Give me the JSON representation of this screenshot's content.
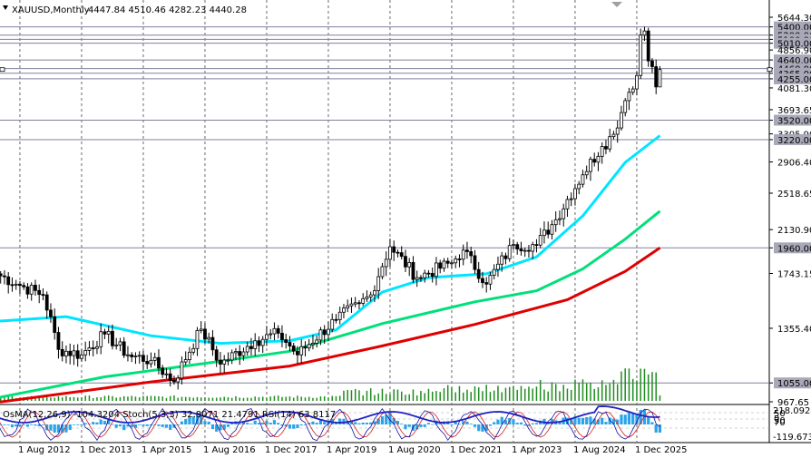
{
  "header": {
    "symbol": "XAUUSD,Monthly",
    "ohlc": "4447.84 4510.46 4282.23 4440.28",
    "indicators": "OsMA(12,26,9) -104.3204  Stoch(5,3,3) 32.8071 21.4791  RSI(14) 63.8117"
  },
  "price_axis": {
    "labels": [
      "5644.30",
      "5400.00",
      "5200.00",
      "5100.00",
      "5010.00",
      "4856.90",
      "4640.00",
      "4460.00",
      "4365.00",
      "4255.00",
      "4081.30",
      "3693.65",
      "3520.00",
      "3305.90",
      "3220.00",
      "2906.40",
      "2518.65",
      "2130.90",
      "1960.00",
      "1743.15",
      "1355.40",
      "1055.00",
      "967.65"
    ],
    "boxed": [
      "5400.00",
      "5200.00",
      "5100.00",
      "5010.00",
      "4640.00",
      "4460.00",
      "4365.00",
      "4255.00",
      "3520.00",
      "3220.00",
      "1960.00",
      "1055.00"
    ]
  },
  "sub_axis": {
    "labels": [
      "218.0924",
      "70",
      "50",
      "30",
      "0",
      "-119.6734"
    ]
  },
  "time_axis": {
    "labels": [
      "1 Aug 2012",
      "1 Dec 2013",
      "1 Apr 2015",
      "1 Aug 2016",
      "1 Dec 2017",
      "1 Apr 2019",
      "1 Aug 2020",
      "1 Dec 2021",
      "1 Apr 2023",
      "1 Aug 2024",
      "1 Dec 2025"
    ]
  },
  "colors": {
    "candle": "#000000",
    "ema_fast": "#00e5ff",
    "ema_mid": "#00e07a",
    "ema_slow": "#e00000",
    "volume": "#1e8c1e",
    "osma": "#2aa3e8",
    "stoch_main": "#1010a0",
    "stoch_signal": "#d02020",
    "rsi": "#2020c0",
    "level_line": "#8080a0"
  },
  "chart_data": {
    "type": "candlestick",
    "symbol": "XAUUSD",
    "timeframe": "Monthly",
    "last_bar": {
      "open": 4447.84,
      "high": 4510.46,
      "low": 4282.23,
      "close": 4440.28
    },
    "horizontal_levels": [
      5400,
      5200,
      5100,
      5010,
      4640,
      4460,
      4365,
      4255,
      3520,
      3220,
      1960,
      1055
    ],
    "y_axis": {
      "scale": "log",
      "range": [
        967.65,
        5644.3
      ]
    },
    "close_path": [
      {
        "x": "2012-02",
        "close": 1740
      },
      {
        "x": "2012-08",
        "close": 1650
      },
      {
        "x": "2013-02",
        "close": 1580
      },
      {
        "x": "2013-06",
        "close": 1230
      },
      {
        "x": "2013-12",
        "close": 1200
      },
      {
        "x": "2014-06",
        "close": 1320
      },
      {
        "x": "2014-12",
        "close": 1200
      },
      {
        "x": "2015-06",
        "close": 1170
      },
      {
        "x": "2015-12",
        "close": 1060
      },
      {
        "x": "2016-07",
        "close": 1350
      },
      {
        "x": "2016-12",
        "close": 1150
      },
      {
        "x": "2017-09",
        "close": 1280
      },
      {
        "x": "2018-03",
        "close": 1325
      },
      {
        "x": "2018-08",
        "close": 1200
      },
      {
        "x": "2019-06",
        "close": 1410
      },
      {
        "x": "2019-12",
        "close": 1520
      },
      {
        "x": "2020-03",
        "close": 1580
      },
      {
        "x": "2020-08",
        "close": 1970
      },
      {
        "x": "2021-03",
        "close": 1710
      },
      {
        "x": "2021-12",
        "close": 1830
      },
      {
        "x": "2022-03",
        "close": 1940
      },
      {
        "x": "2022-09",
        "close": 1660
      },
      {
        "x": "2023-04",
        "close": 1990
      },
      {
        "x": "2023-10",
        "close": 1985
      },
      {
        "x": "2024-03",
        "close": 2230
      },
      {
        "x": "2024-10",
        "close": 2740
      },
      {
        "x": "2025-03",
        "close": 3120
      },
      {
        "x": "2025-06",
        "close": 3300
      },
      {
        "x": "2025-09",
        "close": 3850
      },
      {
        "x": "2025-10",
        "close": 4000
      },
      {
        "x": "2025-12",
        "close": 4320
      },
      {
        "x": "2026-01",
        "close": 5200
      },
      {
        "x": "2026-02",
        "close": 5300
      },
      {
        "x": "2026-03",
        "close": 4620
      },
      {
        "x": "2026-04",
        "close": 4500
      },
      {
        "x": "2026-05",
        "close": 4100
      },
      {
        "x": "2026-06",
        "close": 4440
      }
    ],
    "moving_averages": [
      {
        "color": "cyan",
        "points": [
          {
            "x": "2012-02",
            "y": 1400
          },
          {
            "x": "2013-08",
            "y": 1430
          },
          {
            "x": "2015-06",
            "y": 1310
          },
          {
            "x": "2016-12",
            "y": 1265
          },
          {
            "x": "2018-06",
            "y": 1280
          },
          {
            "x": "2019-06",
            "y": 1345
          },
          {
            "x": "2020-06",
            "y": 1600
          },
          {
            "x": "2021-06",
            "y": 1710
          },
          {
            "x": "2022-09",
            "y": 1740
          },
          {
            "x": "2023-10",
            "y": 1880
          },
          {
            "x": "2024-10",
            "y": 2270
          },
          {
            "x": "2025-09",
            "y": 2900
          },
          {
            "x": "2026-06",
            "y": 3280
          }
        ]
      },
      {
        "color": "green",
        "points": [
          {
            "x": "2012-02",
            "y": 985
          },
          {
            "x": "2014-06",
            "y": 1085
          },
          {
            "x": "2016-12",
            "y": 1165
          },
          {
            "x": "2018-06",
            "y": 1220
          },
          {
            "x": "2020-06",
            "y": 1385
          },
          {
            "x": "2022-06",
            "y": 1530
          },
          {
            "x": "2023-10",
            "y": 1610
          },
          {
            "x": "2024-10",
            "y": 1780
          },
          {
            "x": "2025-09",
            "y": 2040
          },
          {
            "x": "2026-06",
            "y": 2320
          }
        ]
      },
      {
        "color": "red",
        "points": [
          {
            "x": "2012-02",
            "y": 965
          },
          {
            "x": "2015-06",
            "y": 1060
          },
          {
            "x": "2018-06",
            "y": 1140
          },
          {
            "x": "2020-06",
            "y": 1250
          },
          {
            "x": "2022-06",
            "y": 1380
          },
          {
            "x": "2024-06",
            "y": 1545
          },
          {
            "x": "2025-09",
            "y": 1760
          },
          {
            "x": "2026-06",
            "y": 1960
          }
        ]
      }
    ]
  }
}
